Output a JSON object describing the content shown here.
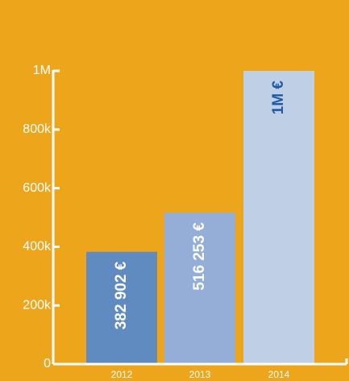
{
  "chart_data": {
    "type": "bar",
    "title": "",
    "xlabel": "",
    "ylabel": "",
    "ylim": [
      0,
      1000000
    ],
    "categories": [
      "2012",
      "2013",
      "2014"
    ],
    "values": [
      382902,
      516253,
      1000000
    ],
    "data_labels": [
      "382 902 €",
      "516 253 €",
      "1M €"
    ],
    "y_ticks": [
      {
        "value": 0,
        "label": "0"
      },
      {
        "value": 200000,
        "label": "200k"
      },
      {
        "value": 400000,
        "label": "400k"
      },
      {
        "value": 600000,
        "label": "600k"
      },
      {
        "value": 800000,
        "label": "800k"
      },
      {
        "value": 1000000,
        "label": "1M"
      }
    ],
    "grid": false,
    "legend": "none",
    "colors": {
      "background": "#eda61c",
      "axis": "#ffffff",
      "bars": [
        "#5f8bc0",
        "#95aed8",
        "#bfcfe6"
      ],
      "data_labels": [
        "#ffffff",
        "#ffffff",
        "#1f5aa6"
      ]
    }
  }
}
